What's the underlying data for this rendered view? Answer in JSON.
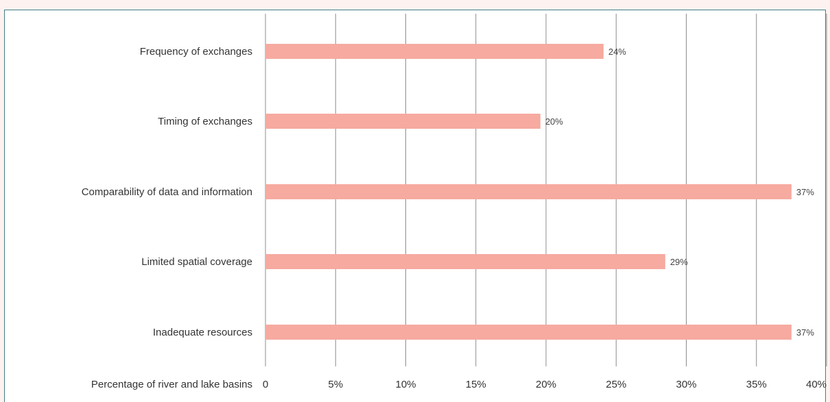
{
  "chart_data": {
    "type": "bar",
    "orientation": "horizontal",
    "categories": [
      "Frequency of exchanges",
      "Timing of exchanges",
      "Comparability of data and information",
      "Limited spatial coverage",
      "Inadequate resources"
    ],
    "values": [
      24,
      20,
      37,
      29,
      37
    ],
    "plotted_values": [
      24.1,
      19.6,
      37.5,
      28.5,
      37.5
    ],
    "data_labels": [
      "24%",
      "20%",
      "37%",
      "29%",
      "37%"
    ],
    "xlabel": "Percentage of river and lake basins",
    "xlim": [
      0,
      40
    ],
    "xticks": [
      0,
      5,
      10,
      15,
      20,
      25,
      30,
      35,
      40
    ],
    "xtick_labels": [
      "0",
      "5%",
      "10%",
      "15%",
      "20%",
      "25%",
      "30%",
      "35%",
      "40%"
    ],
    "grid": "vertical",
    "bar_color": "#f6aaa0"
  }
}
